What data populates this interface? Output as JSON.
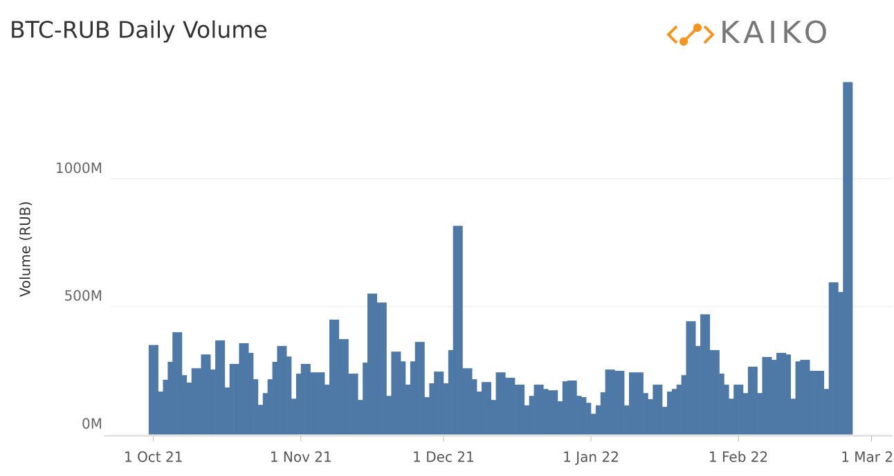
{
  "chart_data": {
    "type": "bar",
    "title": "BTC-RUB Daily Volume",
    "logo": "KAIKO",
    "y_label": "Volume (RUB)",
    "color": "#4e79a7",
    "grid": true,
    "xlim": [
      "2021-09-21",
      "2022-03-05"
    ],
    "xticks": [
      {
        "value": "2021-10-01",
        "label": "1 Oct 21"
      },
      {
        "value": "2021-11-01",
        "label": "1 Nov 21"
      },
      {
        "value": "2021-12-01",
        "label": "1 Dec 21"
      },
      {
        "value": "2022-01-01",
        "label": "1 Jan 22"
      },
      {
        "value": "2022-02-01",
        "label": "1 Feb 22"
      },
      {
        "value": "2022-03-01",
        "label": "1 Mar 22"
      }
    ],
    "ylim": [
      0,
      1450
    ],
    "yticks": [
      {
        "value": 0,
        "label": "0M"
      },
      {
        "value": 500,
        "label": "500M"
      },
      {
        "value": 1000,
        "label": "1000M"
      }
    ],
    "x": [
      "2021-09-30",
      "2021-10-01",
      "2021-10-02",
      "2021-10-03",
      "2021-10-04",
      "2021-10-05",
      "2021-10-06",
      "2021-10-07",
      "2021-10-08",
      "2021-10-09",
      "2021-10-10",
      "2021-10-11",
      "2021-10-12",
      "2021-10-13",
      "2021-10-14",
      "2021-10-15",
      "2021-10-16",
      "2021-10-17",
      "2021-10-18",
      "2021-10-19",
      "2021-10-20",
      "2021-10-21",
      "2021-10-22",
      "2021-10-23",
      "2021-10-24",
      "2021-10-25",
      "2021-10-26",
      "2021-10-27",
      "2021-10-28",
      "2021-10-29",
      "2021-10-30",
      "2021-10-31",
      "2021-11-01",
      "2021-11-02",
      "2021-11-03",
      "2021-11-04",
      "2021-11-05",
      "2021-11-06",
      "2021-11-07",
      "2021-11-08",
      "2021-11-09",
      "2021-11-10",
      "2021-11-11",
      "2021-11-12",
      "2021-11-13",
      "2021-11-14",
      "2021-11-15",
      "2021-11-16",
      "2021-11-17",
      "2021-11-18",
      "2021-11-19",
      "2021-11-20",
      "2021-11-21",
      "2021-11-22",
      "2021-11-23",
      "2021-11-24",
      "2021-11-25",
      "2021-11-26",
      "2021-11-27",
      "2021-11-28",
      "2021-11-29",
      "2021-11-30",
      "2021-12-01",
      "2021-12-02",
      "2021-12-03",
      "2021-12-04",
      "2021-12-05",
      "2021-12-06",
      "2021-12-07",
      "2021-12-08",
      "2021-12-09",
      "2021-12-10",
      "2021-12-11",
      "2021-12-12",
      "2021-12-13",
      "2021-12-14",
      "2021-12-15",
      "2021-12-16",
      "2021-12-17",
      "2021-12-18",
      "2021-12-19",
      "2021-12-20",
      "2021-12-21",
      "2021-12-22",
      "2021-12-23",
      "2021-12-24",
      "2021-12-25",
      "2021-12-26",
      "2021-12-27",
      "2021-12-28",
      "2021-12-29",
      "2021-12-30",
      "2021-12-31",
      "2022-01-01",
      "2022-01-02",
      "2022-01-03",
      "2022-01-04",
      "2022-01-05",
      "2022-01-06",
      "2022-01-07",
      "2022-01-08",
      "2022-01-09",
      "2022-01-10",
      "2022-01-11",
      "2022-01-12",
      "2022-01-13",
      "2022-01-14",
      "2022-01-15",
      "2022-01-16",
      "2022-01-17",
      "2022-01-18",
      "2022-01-19",
      "2022-01-20",
      "2022-01-21",
      "2022-01-22",
      "2022-01-23",
      "2022-01-24",
      "2022-01-25",
      "2022-01-26",
      "2022-01-27",
      "2022-01-28",
      "2022-01-29",
      "2022-01-30",
      "2022-01-31",
      "2022-02-01",
      "2022-02-02",
      "2022-02-03",
      "2022-02-04",
      "2022-02-05",
      "2022-02-06",
      "2022-02-07",
      "2022-02-08",
      "2022-02-09",
      "2022-02-10",
      "2022-02-11",
      "2022-02-12",
      "2022-02-13",
      "2022-02-14",
      "2022-02-15",
      "2022-02-16",
      "2022-02-17",
      "2022-02-18",
      "2022-02-19",
      "2022-02-20",
      "2022-02-21",
      "2022-02-22",
      "2022-02-23",
      "2022-02-24"
    ],
    "values": [
      350,
      350,
      168,
      214,
      284,
      400,
      400,
      232,
      203,
      259,
      259,
      313,
      313,
      254,
      368,
      368,
      184,
      276,
      276,
      357,
      357,
      319,
      216,
      116,
      162,
      216,
      284,
      346,
      346,
      305,
      140,
      238,
      276,
      276,
      243,
      243,
      243,
      195,
      449,
      449,
      373,
      373,
      238,
      238,
      135,
      281,
      551,
      551,
      516,
      516,
      151,
      324,
      324,
      286,
      195,
      286,
      362,
      362,
      146,
      200,
      246,
      246,
      200,
      330,
      816,
      816,
      259,
      259,
      216,
      168,
      205,
      205,
      135,
      243,
      243,
      222,
      222,
      195,
      195,
      114,
      151,
      195,
      195,
      178,
      173,
      173,
      130,
      208,
      211,
      211,
      151,
      146,
      124,
      81,
      114,
      165,
      254,
      254,
      249,
      249,
      114,
      243,
      243,
      243,
      162,
      138,
      195,
      195,
      108,
      168,
      178,
      195,
      232,
      443,
      443,
      346,
      470,
      470,
      330,
      330,
      238,
      195,
      140,
      195,
      195,
      162,
      265,
      265,
      162,
      303,
      303,
      292,
      319,
      319,
      313,
      140,
      286,
      292,
      292,
      249,
      249,
      249,
      178,
      595,
      595,
      557,
      1378,
      1378
    ]
  }
}
